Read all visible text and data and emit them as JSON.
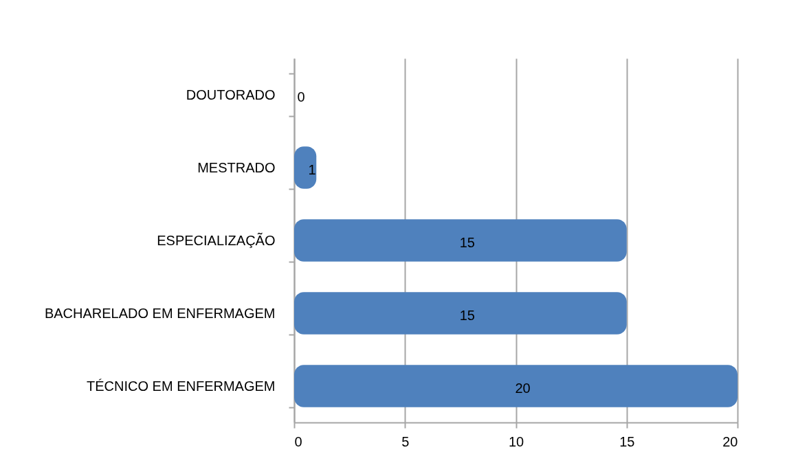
{
  "chart_data": {
    "type": "bar",
    "orientation": "horizontal",
    "categories": [
      "DOUTORADO",
      "MESTRADO",
      "ESPECIALIZAÇÃO",
      "BACHARELADO EM ENFERMAGEM",
      "TÉCNICO EM ENFERMAGEM"
    ],
    "values": [
      0,
      1,
      15,
      15,
      20
    ],
    "color": "#4f81bd",
    "xlim": [
      0,
      20
    ],
    "xticks": [
      0,
      5,
      10,
      15,
      20
    ],
    "grid": "x",
    "data_labels": true
  }
}
